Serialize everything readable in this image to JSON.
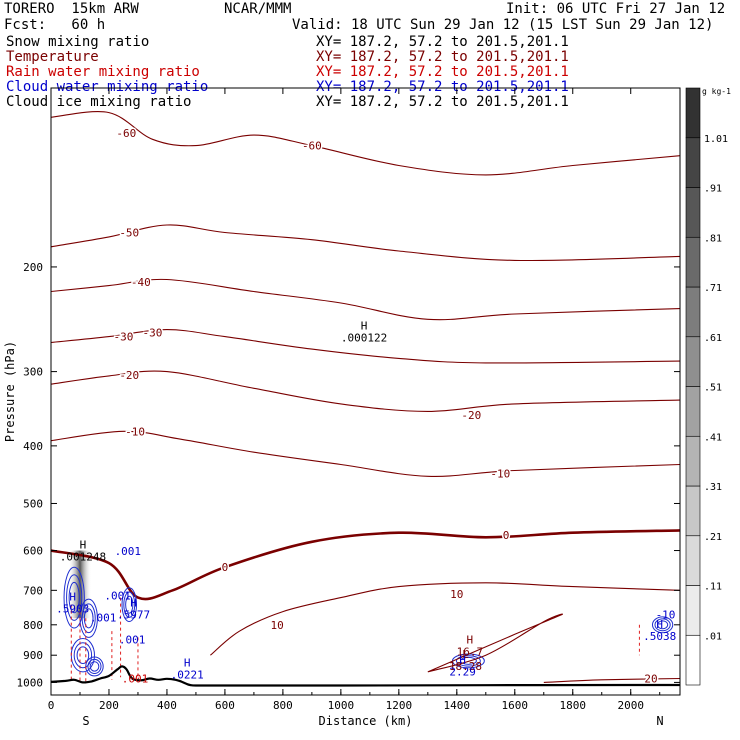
{
  "header": {
    "model": "TORERO  15km ARW",
    "center": "NCAR/MMM",
    "init": "Init: 06 UTC Fri 27 Jan 12",
    "fcst": "Fcst:   60 h",
    "valid": "Valid: 18 UTC Sun 29 Jan 12 (15 LST Sun 29 Jan 12)"
  },
  "legend": [
    {
      "label": "Snow mixing ratio",
      "xy": "XY= 187.2, 57.2 to 201.5,201.1",
      "color": "#000000"
    },
    {
      "label": "Temperature",
      "xy": "XY= 187.2, 57.2 to 201.5,201.1",
      "color": "#7a0000"
    },
    {
      "label": "Rain water mixing ratio",
      "xy": "XY= 187.2, 57.2 to 201.5,201.1",
      "color": "#cc0000"
    },
    {
      "label": "Cloud water mixing ratio",
      "xy": "XY= 187.2, 57.2 to 201.5,201.1",
      "color": "#0000cc"
    },
    {
      "label": "Cloud ice mixing ratio",
      "xy": "XY= 187.2, 57.2 to 201.5,201.1",
      "color": "#000000"
    }
  ],
  "chart_data": {
    "type": "contour",
    "xlabel": "Distance (km)",
    "ylabel": "Pressure (hPa)",
    "xlim": [
      0,
      2170
    ],
    "ylim": [
      1050,
      100
    ],
    "y_scale": "log",
    "x_ticks": [
      0,
      200,
      400,
      600,
      800,
      1000,
      1200,
      1400,
      1600,
      1800,
      2000
    ],
    "y_ticks": [
      200,
      300,
      400,
      500,
      600,
      700,
      800,
      900,
      1000
    ],
    "endpoints": {
      "left": "S",
      "right": "N"
    },
    "terrain_pressure": [
      [
        0,
        998
      ],
      [
        50,
        994
      ],
      [
        80,
        990
      ],
      [
        110,
        1000
      ],
      [
        140,
        996
      ],
      [
        170,
        985
      ],
      [
        200,
        975
      ],
      [
        230,
        950
      ],
      [
        245,
        940
      ],
      [
        260,
        950
      ],
      [
        280,
        985
      ],
      [
        310,
        992
      ],
      [
        340,
        985
      ],
      [
        370,
        990
      ],
      [
        400,
        986
      ],
      [
        430,
        990
      ],
      [
        450,
        997
      ],
      [
        480,
        1010
      ],
      [
        520,
        1012
      ],
      [
        700,
        1012
      ],
      [
        1000,
        1012
      ],
      [
        1500,
        1011
      ],
      [
        2000,
        1010
      ],
      [
        2170,
        1010
      ]
    ],
    "temperature_contours": [
      {
        "label": "-60",
        "points": [
          [
            0,
            112
          ],
          [
            200,
            110
          ],
          [
            350,
            122
          ],
          [
            500,
            125
          ],
          [
            700,
            120
          ],
          [
            900,
            125
          ],
          [
            1200,
            135
          ],
          [
            1500,
            140
          ],
          [
            1800,
            135
          ],
          [
            2170,
            130
          ]
        ],
        "label_at": [
          [
            260,
            119
          ],
          [
            900,
            125
          ]
        ]
      },
      {
        "label": "-50",
        "points": [
          [
            0,
            185
          ],
          [
            200,
            178
          ],
          [
            400,
            170
          ],
          [
            600,
            175
          ],
          [
            900,
            180
          ],
          [
            1200,
            188
          ],
          [
            1600,
            195
          ],
          [
            2170,
            192
          ]
        ],
        "label_at": [
          [
            270,
            175
          ]
        ]
      },
      {
        "label": "-40",
        "points": [
          [
            0,
            220
          ],
          [
            200,
            215
          ],
          [
            400,
            210
          ],
          [
            700,
            220
          ],
          [
            1000,
            230
          ],
          [
            1300,
            245
          ],
          [
            1600,
            240
          ],
          [
            2170,
            235
          ]
        ],
        "label_at": [
          [
            310,
            212
          ]
        ]
      },
      {
        "label": "-30",
        "points": [
          [
            0,
            268
          ],
          [
            200,
            262
          ],
          [
            400,
            255
          ],
          [
            600,
            262
          ],
          [
            900,
            275
          ],
          [
            1200,
            285
          ],
          [
            1500,
            290
          ],
          [
            2170,
            288
          ]
        ],
        "label_at": [
          [
            250,
            262
          ],
          [
            350,
            258
          ]
        ]
      },
      {
        "label": "-20",
        "points": [
          [
            0,
            315
          ],
          [
            200,
            305
          ],
          [
            400,
            300
          ],
          [
            700,
            320
          ],
          [
            1000,
            340
          ],
          [
            1300,
            350
          ],
          [
            1600,
            340
          ],
          [
            2170,
            335
          ]
        ],
        "label_at": [
          [
            270,
            304
          ],
          [
            1450,
            355
          ]
        ]
      },
      {
        "label": "-10",
        "points": [
          [
            0,
            392
          ],
          [
            250,
            378
          ],
          [
            450,
            390
          ],
          [
            700,
            410
          ],
          [
            1000,
            430
          ],
          [
            1300,
            450
          ],
          [
            1600,
            440
          ],
          [
            2170,
            430
          ]
        ],
        "label_at": [
          [
            290,
            378
          ],
          [
            1550,
            445
          ]
        ]
      },
      {
        "label": "0",
        "points": [
          [
            0,
            600
          ],
          [
            200,
            630
          ],
          [
            300,
            720
          ],
          [
            420,
            700
          ],
          [
            600,
            640
          ],
          [
            900,
            580
          ],
          [
            1200,
            560
          ],
          [
            1500,
            570
          ],
          [
            1800,
            560
          ],
          [
            2170,
            555
          ]
        ],
        "label_at": [
          [
            600,
            640
          ],
          [
            1570,
            565
          ]
        ]
      },
      {
        "label": "10",
        "points": [
          [
            550,
            900
          ],
          [
            650,
            820
          ],
          [
            800,
            760
          ],
          [
            1000,
            720
          ],
          [
            1200,
            690
          ],
          [
            1500,
            680
          ],
          [
            1800,
            690
          ],
          [
            2170,
            700
          ]
        ],
        "label_at": [
          [
            780,
            800
          ],
          [
            1400,
            710
          ]
        ]
      },
      {
        "label": "20",
        "points": [
          [
            1700,
            1000
          ],
          [
            1900,
            990
          ],
          [
            2170,
            985
          ]
        ],
        "label_at": [
          [
            2070,
            985
          ]
        ]
      }
    ],
    "annotations": [
      {
        "text": "H",
        "sub": ".000122",
        "x": 1080,
        "y": 255,
        "color": "#000000"
      },
      {
        "text": "H",
        "sub": ".001248",
        "x": 110,
        "y": 595,
        "color": "#000000"
      },
      {
        "text": ".001",
        "x": 265,
        "y": 610,
        "color": "#0000cc"
      },
      {
        "text": "H",
        "sub": ".5903",
        "x": 75,
        "y": 728,
        "color": "#0000cc"
      },
      {
        "text": ".001",
        "x": 230,
        "y": 725,
        "color": "#0000cc"
      },
      {
        "text": "H",
        "sub": ".5977",
        "x": 285,
        "y": 745,
        "color": "#0000cc"
      },
      {
        "text": ".001",
        "x": 180,
        "y": 790,
        "color": "#0000cc"
      },
      {
        "text": ".001",
        "x": 280,
        "y": 860,
        "color": "#0000cc"
      },
      {
        "text": "H",
        "sub": ".0221",
        "x": 470,
        "y": 940,
        "color": "#0000cc"
      },
      {
        "text": ".001",
        "x": 290,
        "y": 1000,
        "color": "#cc0000"
      },
      {
        "text": "H",
        "sub": "16.7",
        "x": 1445,
        "y": 860,
        "color": "#7a0000"
      },
      {
        "text": "L",
        "sub": "18.28",
        "x": 1430,
        "y": 910,
        "color": "#7a0000"
      },
      {
        "text": "H",
        "sub": "2.29",
        "x": 1420,
        "y": 930,
        "color": "#0000cc"
      },
      {
        "text": "-10",
        "x": 2120,
        "y": 780,
        "color": "#0000cc"
      },
      {
        "text": "H",
        "sub": ".5038",
        "x": 2100,
        "y": 810,
        "color": "#0000cc"
      }
    ],
    "colorbar": {
      "unit": "g kg-1",
      "labels": [
        ".01",
        ".11",
        ".21",
        ".31",
        ".41",
        ".51",
        ".61",
        ".71",
        ".81",
        ".91",
        "1.01"
      ]
    }
  }
}
